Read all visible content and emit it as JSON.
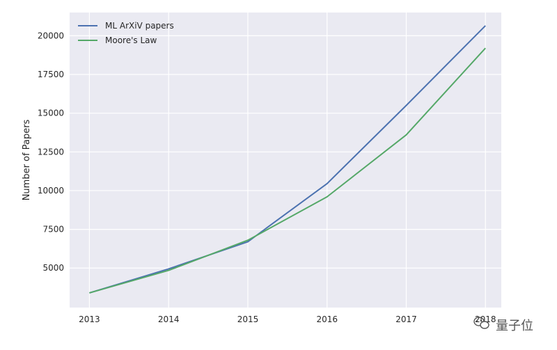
{
  "chart_data": {
    "type": "line",
    "title": "",
    "xlabel": "",
    "ylabel": "Number of Papers",
    "x": [
      2013,
      2014,
      2015,
      2016,
      2017,
      2018
    ],
    "xlim": [
      2012.75,
      2018.2
    ],
    "ylim": [
      2450,
      21500
    ],
    "yticks": [
      5000,
      7500,
      10000,
      12500,
      15000,
      17500,
      20000
    ],
    "grid": true,
    "legend_position": "top-left",
    "background": "#eaeaf2",
    "series": [
      {
        "name": "ML ArXiV papers",
        "color": "#4c72b0",
        "values": [
          3400,
          4950,
          6700,
          10450,
          15500,
          20650
        ]
      },
      {
        "name": "Moore's Law",
        "color": "#55a868",
        "values": [
          3400,
          4850,
          6800,
          9600,
          13600,
          19200
        ]
      }
    ]
  },
  "watermark": {
    "text": "量子位",
    "icon": "wechat-icon"
  }
}
